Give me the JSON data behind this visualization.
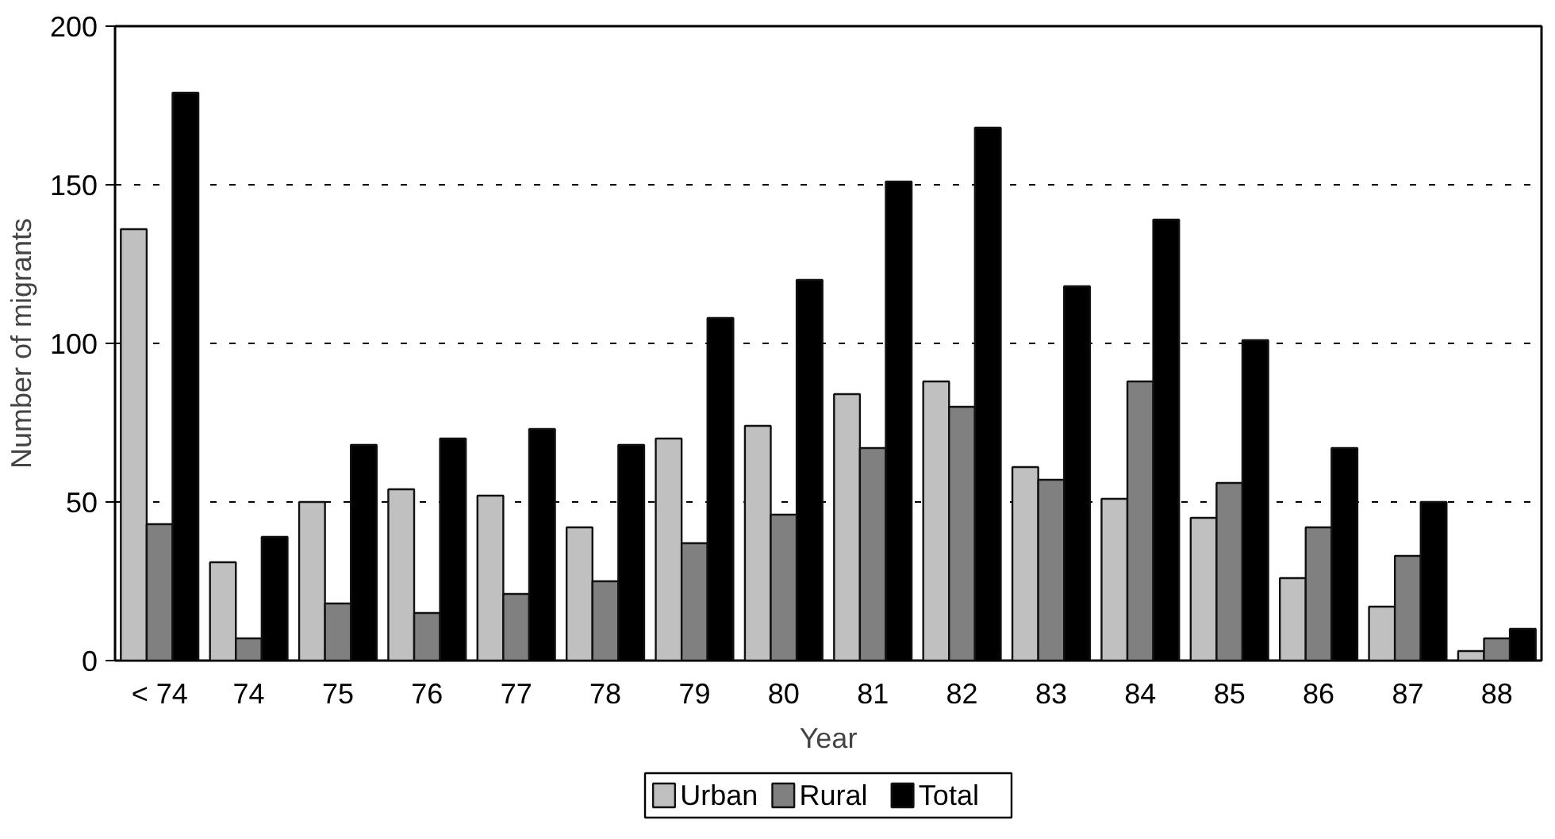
{
  "chart_data": {
    "type": "bar",
    "xlabel": "Year",
    "ylabel": "Number of migrants",
    "categories": [
      "< 74",
      "74",
      "75",
      "76",
      "77",
      "78",
      "79",
      "80",
      "81",
      "82",
      "83",
      "84",
      "85",
      "86",
      "87",
      "88"
    ],
    "series": [
      {
        "name": "Urban",
        "color": "#c0c0c0",
        "values": [
          136,
          31,
          50,
          54,
          52,
          42,
          70,
          74,
          84,
          88,
          61,
          51,
          45,
          26,
          17,
          3
        ]
      },
      {
        "name": "Rural",
        "color": "#808080",
        "values": [
          43,
          7,
          18,
          15,
          21,
          25,
          37,
          46,
          67,
          80,
          57,
          88,
          56,
          42,
          33,
          7
        ]
      },
      {
        "name": "Total",
        "color": "#000000",
        "values": [
          179,
          39,
          68,
          70,
          73,
          68,
          108,
          120,
          151,
          168,
          118,
          139,
          101,
          67,
          50,
          10
        ]
      }
    ],
    "ylim": [
      0,
      200
    ],
    "yticks": [
      0,
      50,
      100,
      150,
      200
    ],
    "grid": "y",
    "legend": "bottom",
    "line_style": "dashed"
  }
}
